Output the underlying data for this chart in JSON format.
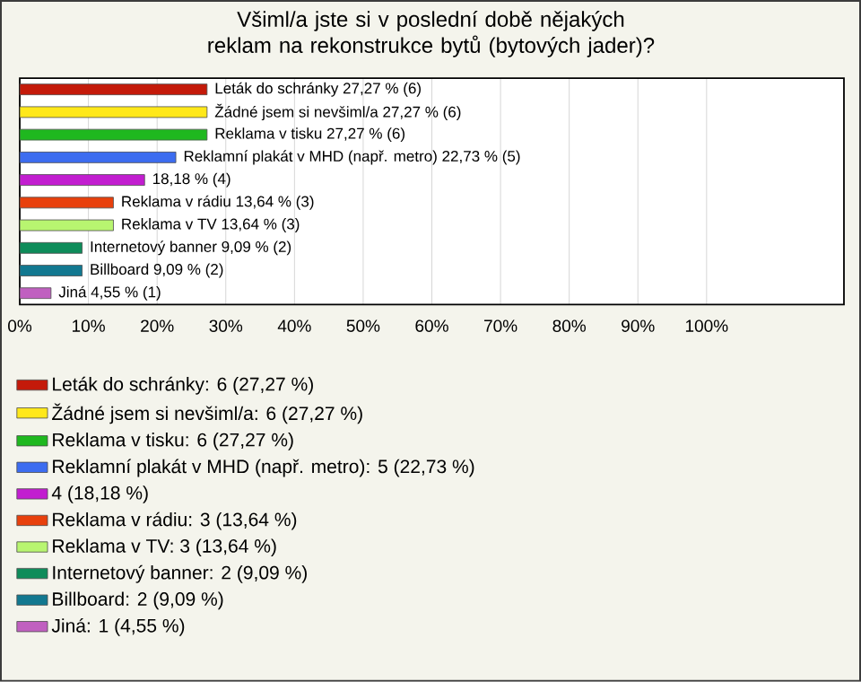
{
  "chart_data": {
    "type": "bar",
    "orientation": "horizontal",
    "title": "Všiml/a jste si v poslední době nějakých reklam na rekonstrukce bytů (bytových jader)?",
    "categories": [
      null,
      null,
      null,
      null,
      null,
      null,
      null,
      null,
      null,
      null
    ],
    "series": [
      {
        "name": "Leták do schránky: 6 (27,27 %)",
        "color": "#c41a0a",
        "values": [
          27.27,
          null,
          null,
          null,
          null,
          null,
          null,
          null,
          null,
          null
        ],
        "value_labels": [
          "Leták do schránky 27,27 % (6)",
          null,
          null,
          null,
          null,
          null,
          null,
          null,
          null,
          null
        ]
      },
      {
        "name": "Žádné jsem si nevšiml/a: 6 (27,27 %)",
        "color": "#ffe81a",
        "values": [
          null,
          27.27,
          null,
          null,
          null,
          null,
          null,
          null,
          null,
          null
        ],
        "value_labels": [
          null,
          "Žádné jsem si nevšiml/a 27,27 % (6)",
          null,
          null,
          null,
          null,
          null,
          null,
          null,
          null
        ]
      },
      {
        "name": "Reklama v tisku: 6 (27,27 %)",
        "color": "#1fb81f",
        "values": [
          null,
          null,
          27.27,
          null,
          null,
          null,
          null,
          null,
          null,
          null
        ],
        "value_labels": [
          null,
          null,
          "Reklama v tisku 27,27 % (6)",
          null,
          null,
          null,
          null,
          null,
          null,
          null
        ]
      },
      {
        "name": "Reklamní plakát v MHD (např. metro): 5 (22,73 %)",
        "color": "#3c6cf0",
        "values": [
          null,
          null,
          null,
          22.73,
          null,
          null,
          null,
          null,
          null,
          null
        ],
        "value_labels": [
          null,
          null,
          null,
          "Reklamní plakát v MHD (např. metro) 22,73 % (5)",
          null,
          null,
          null,
          null,
          null,
          null
        ]
      },
      {
        "name": "4 (18,18 %)",
        "color": "#c21ed0",
        "values": [
          null,
          null,
          null,
          null,
          18.18,
          null,
          null,
          null,
          null,
          null
        ],
        "value_labels": [
          null,
          null,
          null,
          null,
          "18,18 % (4)",
          null,
          null,
          null,
          null,
          null
        ]
      },
      {
        "name": "Reklama v rádiu: 3 (13,64 %)",
        "color": "#e8400c",
        "values": [
          null,
          null,
          null,
          null,
          null,
          13.64,
          null,
          null,
          null,
          null
        ],
        "value_labels": [
          null,
          null,
          null,
          null,
          null,
          "Reklama v rádiu 13,64 % (3)",
          null,
          null,
          null,
          null
        ]
      },
      {
        "name": "Reklama v TV: 3 (13,64 %)",
        "color": "#b8f570",
        "values": [
          null,
          null,
          null,
          null,
          null,
          null,
          13.64,
          null,
          null,
          null
        ],
        "value_labels": [
          null,
          null,
          null,
          null,
          null,
          null,
          "Reklama v TV 13,64 % (3)",
          null,
          null,
          null
        ]
      },
      {
        "name": "Internetový banner: 2 (9,09 %)",
        "color": "#0e8c5a",
        "values": [
          null,
          null,
          null,
          null,
          null,
          null,
          null,
          9.09,
          null,
          null
        ],
        "value_labels": [
          null,
          null,
          null,
          null,
          null,
          null,
          null,
          "Internetový banner 9,09 % (2)",
          null,
          null
        ]
      },
      {
        "name": "Billboard: 2 (9,09 %)",
        "color": "#127890",
        "values": [
          null,
          null,
          null,
          null,
          null,
          null,
          null,
          null,
          9.09,
          null
        ],
        "value_labels": [
          null,
          null,
          null,
          null,
          null,
          null,
          null,
          null,
          "Billboard 9,09 % (2)",
          null
        ]
      },
      {
        "name": "Jiná: 1 (4,55 %)",
        "color": "#c060c0",
        "values": [
          null,
          null,
          null,
          null,
          null,
          null,
          null,
          null,
          null,
          4.55
        ],
        "value_labels": [
          null,
          null,
          null,
          null,
          null,
          null,
          null,
          null,
          null,
          "Jiná 4,55 % (1)"
        ]
      }
    ],
    "xlim": [
      0,
      120
    ],
    "xticks": [
      {
        "value": 0,
        "label": "0%"
      },
      {
        "value": 10,
        "label": "10%"
      },
      {
        "value": 20,
        "label": "20%"
      },
      {
        "value": 30,
        "label": "30%"
      },
      {
        "value": 40,
        "label": "40%"
      },
      {
        "value": 50,
        "label": "50%"
      },
      {
        "value": 60,
        "label": "60%"
      },
      {
        "value": 70,
        "label": "70%"
      },
      {
        "value": 80,
        "label": "80%"
      },
      {
        "value": 90,
        "label": "90%"
      },
      {
        "value": 100,
        "label": "100%"
      }
    ],
    "grid": "x",
    "legend": "bottom"
  }
}
